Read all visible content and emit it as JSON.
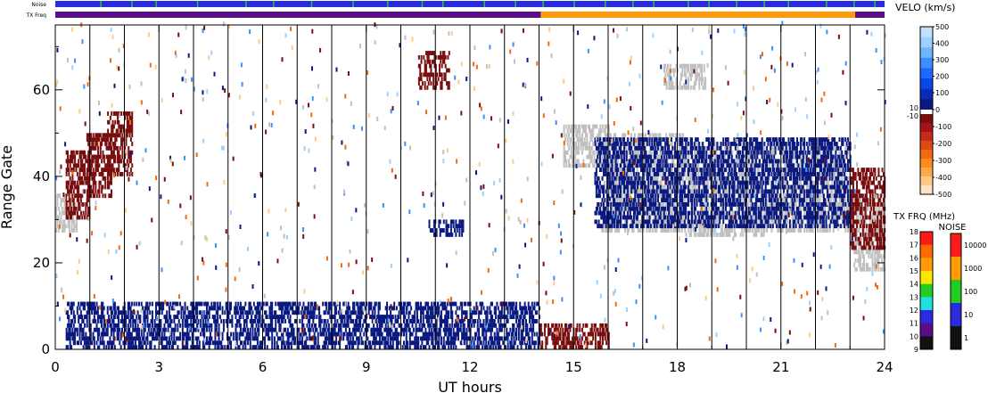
{
  "chart_data": {
    "type": "heatmap",
    "strips": {
      "noise_label": "Noise",
      "txfreq_label": "TX Freq",
      "noise_color": "#2a2ae0",
      "noise_spike_color": "#22cc22",
      "noise_spike_hours": [
        1.3,
        2.2,
        2.9,
        4.1,
        5.5,
        6.3,
        7.4,
        8.6,
        9.6,
        10.6,
        11.2,
        12.4,
        13.3,
        14.1,
        15.0,
        15.9,
        16.7,
        17.3,
        18.3,
        18.9,
        19.7,
        20.5,
        21.2,
        22.3,
        23.1,
        23.7
      ],
      "txfreq_segments": [
        {
          "start": 0,
          "end": 14.05,
          "color": "#5a0d86"
        },
        {
          "start": 14.05,
          "end": 23.15,
          "color": "#ff9a0a"
        },
        {
          "start": 23.15,
          "end": 24,
          "color": "#5a0d86"
        }
      ]
    },
    "xlabel": "UT hours",
    "ylabel": "Range Gate",
    "xlim": [
      0,
      24
    ],
    "ylim": [
      0,
      75
    ],
    "xticks": [
      "0",
      "3",
      "6",
      "9",
      "12",
      "15",
      "18",
      "21",
      "24"
    ],
    "yticks": [
      "0",
      "20",
      "40",
      "60"
    ],
    "hour_lines": [
      1,
      2,
      3,
      4,
      5,
      6,
      7,
      8,
      9,
      10,
      11,
      12,
      13,
      14,
      15,
      16,
      17,
      18,
      19,
      20,
      21,
      22,
      23
    ],
    "series": [
      {
        "name": "ground scatter",
        "color": "#c0c0c0",
        "regions": [
          {
            "t0": 0.0,
            "t1": 0.6,
            "g0": 27,
            "g1": 36
          },
          {
            "t0": 14.7,
            "t1": 16.0,
            "g0": 42,
            "g1": 52
          },
          {
            "t0": 15.8,
            "t1": 18.2,
            "g0": 27,
            "g1": 50
          },
          {
            "t0": 18.2,
            "t1": 20.5,
            "g0": 26,
            "g1": 48
          },
          {
            "t0": 20.5,
            "t1": 23.0,
            "g0": 27,
            "g1": 47
          },
          {
            "t0": 23.1,
            "t1": 24.0,
            "g0": 18,
            "g1": 36
          },
          {
            "t0": 17.6,
            "t1": 18.8,
            "g0": 60,
            "g1": 66
          }
        ]
      },
      {
        "name": "negative velocity",
        "color": "#7a0e0e",
        "regions": [
          {
            "t0": 0.3,
            "t1": 1.0,
            "g0": 30,
            "g1": 46
          },
          {
            "t0": 0.9,
            "t1": 1.6,
            "g0": 35,
            "g1": 50
          },
          {
            "t0": 1.5,
            "t1": 2.2,
            "g0": 40,
            "g1": 55
          },
          {
            "t0": 14.0,
            "t1": 16.0,
            "g0": 0,
            "g1": 6
          },
          {
            "t0": 23.0,
            "t1": 24.0,
            "g0": 23,
            "g1": 42
          },
          {
            "t0": 10.5,
            "t1": 11.4,
            "g0": 60,
            "g1": 69
          }
        ]
      },
      {
        "name": "positive velocity",
        "color": "#0a1a80",
        "regions": [
          {
            "t0": 0.3,
            "t1": 14.0,
            "g0": 0,
            "g1": 11
          },
          {
            "t0": 10.8,
            "t1": 11.8,
            "g0": 26,
            "g1": 30
          },
          {
            "t0": 15.6,
            "t1": 23.0,
            "g0": 28,
            "g1": 49
          }
        ]
      }
    ],
    "velo_scale": {
      "title": "VELO (km/s)",
      "labels": [
        "500",
        "400",
        "300",
        "200",
        "100",
        "0",
        "10",
        "-10",
        "-100",
        "-200",
        "-300",
        "-400",
        "-500"
      ],
      "positive_colors": [
        "#bfe3ff",
        "#9dd0ff",
        "#6fb6ff",
        "#3d8fff",
        "#1f68ff",
        "#0b46e6",
        "#0a2ab8",
        "#0a1a80"
      ],
      "negative_colors": [
        "#7a0e0e",
        "#a6121a",
        "#c62a1a",
        "#e04a12",
        "#f06a10",
        "#ff8a1e",
        "#ffaa4a",
        "#ffc98a",
        "#ffe2c2"
      ]
    },
    "txfrq_scale": {
      "title": "TX FRQ (MHz)",
      "labels": [
        "18",
        "17",
        "16",
        "15",
        "14",
        "13",
        "12",
        "11",
        "10",
        "9"
      ],
      "colors": [
        "#ff1a1a",
        "#ff6a00",
        "#ff9a0a",
        "#ffe600",
        "#22cc22",
        "#22e0e0",
        "#2a2ae0",
        "#5a0d86",
        "#111111"
      ]
    },
    "noise_scale": {
      "title": "NOISE",
      "labels": [
        "10000",
        "1000",
        "100",
        "10",
        "1"
      ],
      "colors": [
        "#ff1a1a",
        "#ff9a0a",
        "#22cc22",
        "#2a2ae0",
        "#111111"
      ]
    }
  }
}
